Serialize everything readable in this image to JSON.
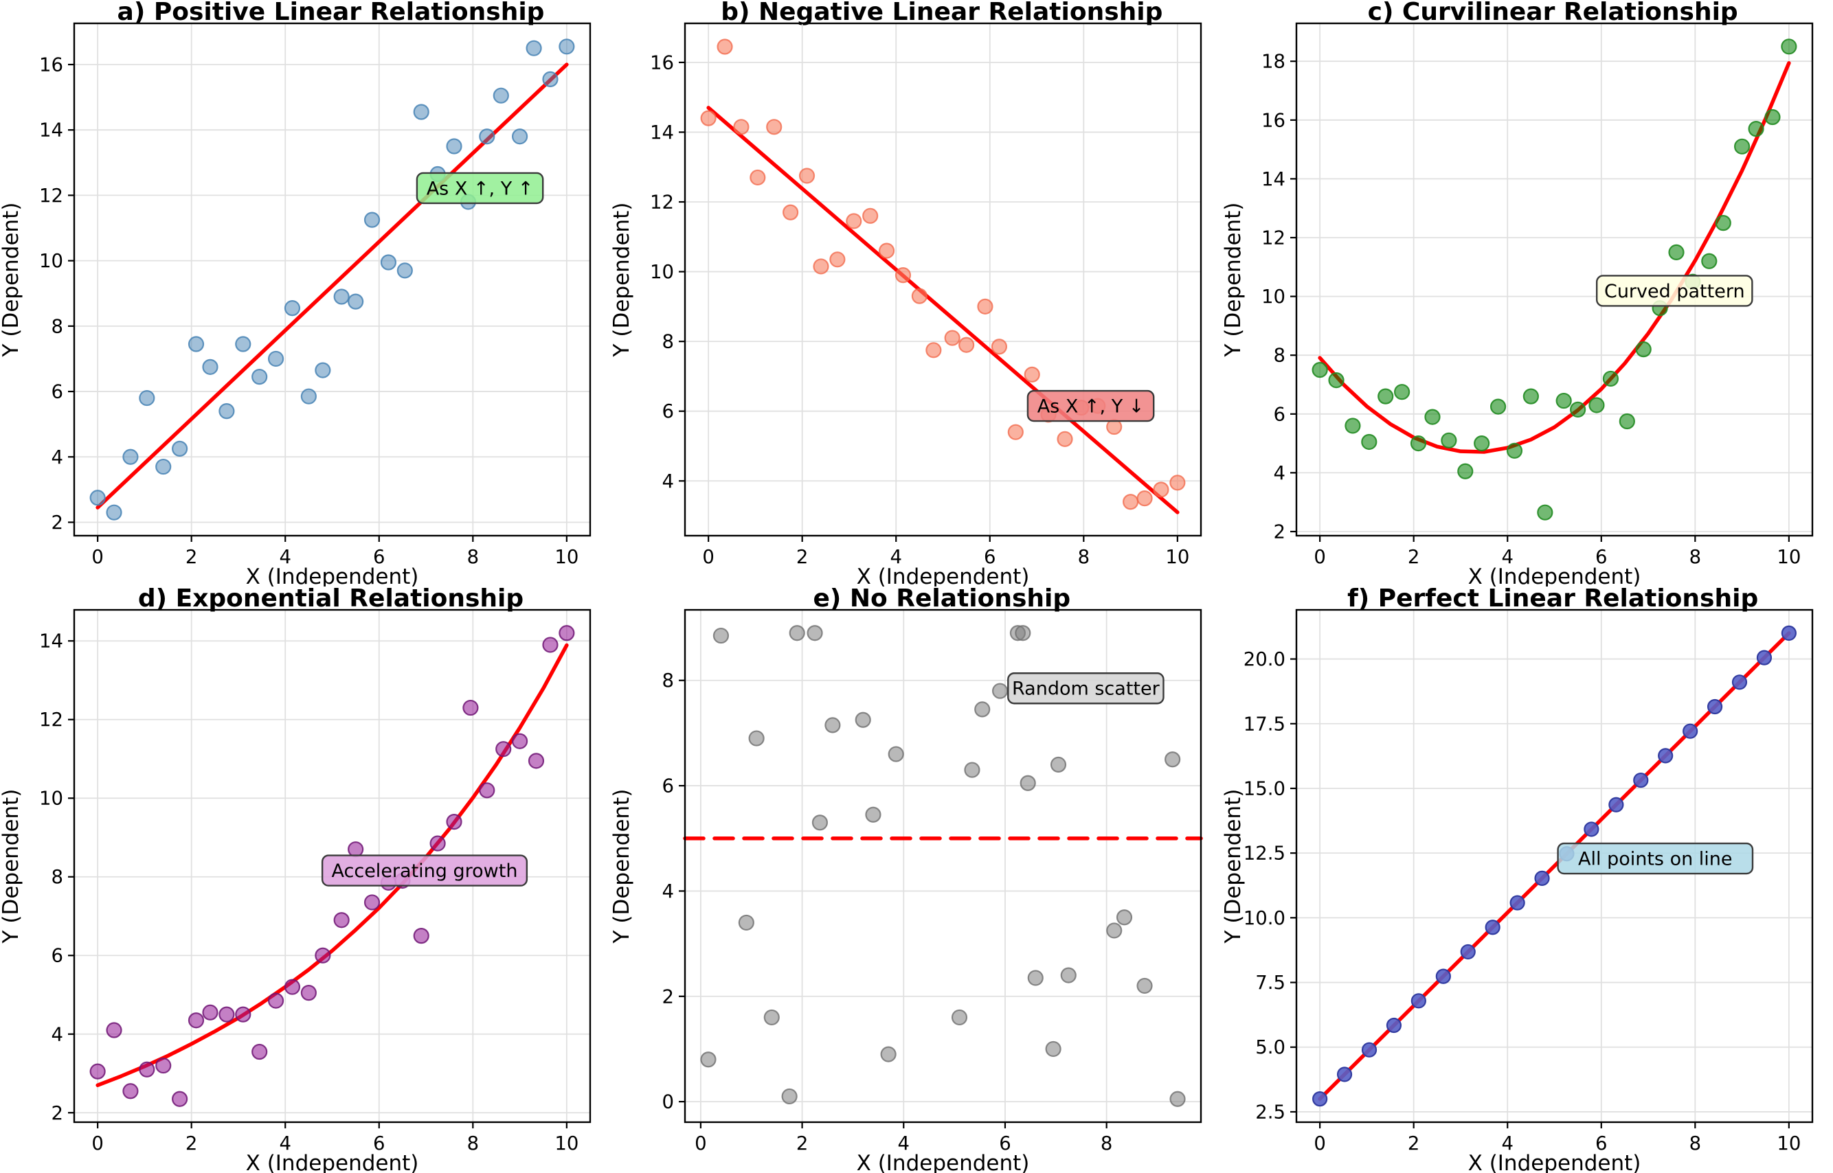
{
  "figure": {
    "background": "#ffffff",
    "trend_color": "#ff0000",
    "grid_color": "#e0e0e0",
    "spine_color": "#000000",
    "annotation_border": "#3a3a3a"
  },
  "chart_data": [
    {
      "id": "a",
      "type": "scatter",
      "title": "a) Positive Linear Relationship",
      "xlabel": "X (Independent)",
      "ylabel": "Y (Dependent)",
      "xlim": [
        -0.5,
        10.5
      ],
      "ylim": [
        1.59,
        17.26
      ],
      "xticks": [
        0,
        2,
        4,
        6,
        8,
        10
      ],
      "xtick_labels": [
        "0",
        "2",
        "4",
        "6",
        "8",
        "10"
      ],
      "yticks": [
        2,
        4,
        6,
        8,
        10,
        12,
        14,
        16
      ],
      "ytick_labels": [
        "2",
        "4",
        "6",
        "8",
        "10",
        "12",
        "14",
        "16"
      ],
      "grid": true,
      "point_style": {
        "fill": "rgba(70,130,180,0.5)",
        "stroke": "rgba(70,130,180,0.85)",
        "radius": 10.5
      },
      "points": [
        [
          0,
          2.75
        ],
        [
          0.35,
          2.3
        ],
        [
          0.7,
          4.0
        ],
        [
          1.05,
          5.8
        ],
        [
          1.4,
          3.7
        ],
        [
          1.75,
          4.25
        ],
        [
          2.1,
          7.45
        ],
        [
          2.4,
          6.75
        ],
        [
          2.75,
          5.4
        ],
        [
          3.1,
          7.45
        ],
        [
          3.45,
          6.45
        ],
        [
          3.8,
          7.0
        ],
        [
          4.15,
          8.55
        ],
        [
          4.5,
          5.85
        ],
        [
          4.8,
          6.65
        ],
        [
          5.2,
          8.9
        ],
        [
          5.5,
          8.75
        ],
        [
          5.85,
          11.25
        ],
        [
          6.2,
          9.95
        ],
        [
          6.55,
          9.7
        ],
        [
          6.9,
          14.55
        ],
        [
          7.25,
          12.65
        ],
        [
          7.6,
          13.5
        ],
        [
          7.9,
          11.8
        ],
        [
          8.3,
          13.8
        ],
        [
          8.6,
          15.05
        ],
        [
          9.0,
          13.8
        ],
        [
          9.3,
          16.5
        ],
        [
          9.65,
          15.55
        ],
        [
          10.0,
          16.55
        ]
      ],
      "trend": {
        "style": "solid",
        "points": [
          [
            0,
            2.45
          ],
          [
            10,
            16.0
          ]
        ]
      },
      "annotation": {
        "text": "As X ↑, Y ↑",
        "x": 8.15,
        "y": 12.22,
        "fill": "#90EE90"
      }
    },
    {
      "id": "b",
      "type": "scatter",
      "title": "b) Negative Linear Relationship",
      "xlabel": "X (Independent)",
      "ylabel": "Y (Dependent)",
      "xlim": [
        -0.5,
        10.5
      ],
      "ylim": [
        2.43,
        17.12
      ],
      "xticks": [
        0,
        2,
        4,
        6,
        8,
        10
      ],
      "xtick_labels": [
        "0",
        "2",
        "4",
        "6",
        "8",
        "10"
      ],
      "yticks": [
        4,
        6,
        8,
        10,
        12,
        14,
        16
      ],
      "ytick_labels": [
        "4",
        "6",
        "8",
        "10",
        "12",
        "14",
        "16"
      ],
      "grid": true,
      "point_style": {
        "fill": "rgba(246,126,96,0.6)",
        "stroke": "rgba(242,100,70,0.75)",
        "radius": 10.5
      },
      "points": [
        [
          0,
          14.4
        ],
        [
          0.35,
          16.45
        ],
        [
          0.7,
          14.15
        ],
        [
          1.05,
          12.7
        ],
        [
          1.4,
          14.15
        ],
        [
          1.75,
          11.7
        ],
        [
          2.1,
          12.75
        ],
        [
          2.4,
          10.15
        ],
        [
          2.75,
          10.35
        ],
        [
          3.1,
          11.45
        ],
        [
          3.45,
          11.6
        ],
        [
          3.8,
          10.6
        ],
        [
          4.15,
          9.9
        ],
        [
          4.5,
          9.3
        ],
        [
          4.8,
          7.75
        ],
        [
          5.2,
          8.1
        ],
        [
          5.5,
          7.9
        ],
        [
          5.9,
          9.0
        ],
        [
          6.2,
          7.85
        ],
        [
          6.55,
          5.4
        ],
        [
          6.9,
          7.05
        ],
        [
          7.25,
          5.9
        ],
        [
          7.6,
          5.2
        ],
        [
          7.95,
          6.1
        ],
        [
          8.3,
          6.15
        ],
        [
          8.65,
          5.55
        ],
        [
          9.0,
          3.4
        ],
        [
          9.3,
          3.5
        ],
        [
          9.65,
          3.75
        ],
        [
          10.0,
          3.95
        ]
      ],
      "trend": {
        "style": "solid",
        "points": [
          [
            0,
            14.7
          ],
          [
            10,
            3.1
          ]
        ]
      },
      "annotation": {
        "text": "As X ↑, Y ↓",
        "x": 8.15,
        "y": 6.15,
        "fill": "#F08080"
      }
    },
    {
      "id": "c",
      "type": "scatter",
      "title": "c) Curvilinear Relationship",
      "xlabel": "X (Independent)",
      "ylabel": "Y (Dependent)",
      "xlim": [
        -0.5,
        10.5
      ],
      "ylim": [
        1.86,
        19.29
      ],
      "xticks": [
        0,
        2,
        4,
        6,
        8,
        10
      ],
      "xtick_labels": [
        "0",
        "2",
        "4",
        "6",
        "8",
        "10"
      ],
      "yticks": [
        2,
        4,
        6,
        8,
        10,
        12,
        14,
        16,
        18
      ],
      "ytick_labels": [
        "2",
        "4",
        "6",
        "8",
        "10",
        "12",
        "14",
        "16",
        "18"
      ],
      "grid": true,
      "point_style": {
        "fill": "rgba(0,128,0,0.55)",
        "stroke": "rgba(34,139,34,0.9)",
        "radius": 10.5
      },
      "points": [
        [
          0,
          7.5
        ],
        [
          0.35,
          7.15
        ],
        [
          0.7,
          5.6
        ],
        [
          1.05,
          5.05
        ],
        [
          1.4,
          6.6
        ],
        [
          1.75,
          6.75
        ],
        [
          2.1,
          5.0
        ],
        [
          2.4,
          5.9
        ],
        [
          2.75,
          5.1
        ],
        [
          3.1,
          4.05
        ],
        [
          3.45,
          5.0
        ],
        [
          3.8,
          6.25
        ],
        [
          4.15,
          4.75
        ],
        [
          4.5,
          6.6
        ],
        [
          4.8,
          2.65
        ],
        [
          5.2,
          6.45
        ],
        [
          5.5,
          6.15
        ],
        [
          5.9,
          6.3
        ],
        [
          6.2,
          7.2
        ],
        [
          6.55,
          5.75
        ],
        [
          6.9,
          8.2
        ],
        [
          7.25,
          9.6
        ],
        [
          7.6,
          11.5
        ],
        [
          7.95,
          10.5
        ],
        [
          8.3,
          11.2
        ],
        [
          8.6,
          12.5
        ],
        [
          9.0,
          15.1
        ],
        [
          9.3,
          15.7
        ],
        [
          9.65,
          16.1
        ],
        [
          10.0,
          18.5
        ]
      ],
      "trend": {
        "style": "solid",
        "points": [
          [
            0,
            7.91
          ],
          [
            0.5,
            7.01
          ],
          [
            1,
            6.26
          ],
          [
            1.5,
            5.66
          ],
          [
            2,
            5.2
          ],
          [
            2.5,
            4.89
          ],
          [
            3,
            4.73
          ],
          [
            3.5,
            4.71
          ],
          [
            4,
            4.85
          ],
          [
            4.5,
            5.13
          ],
          [
            5,
            5.55
          ],
          [
            5.5,
            6.13
          ],
          [
            6,
            6.85
          ],
          [
            6.5,
            7.72
          ],
          [
            7,
            8.74
          ],
          [
            7.5,
            9.9
          ],
          [
            8,
            11.22
          ],
          [
            8.5,
            12.68
          ],
          [
            9,
            14.28
          ],
          [
            9.5,
            16.04
          ],
          [
            10,
            17.94
          ]
        ]
      },
      "annotation": {
        "text": "Curved pattern",
        "x": 7.56,
        "y": 10.19,
        "fill": "#FFFFE0"
      }
    },
    {
      "id": "d",
      "type": "scatter",
      "title": "d) Exponential Relationship",
      "xlabel": "X (Independent)",
      "ylabel": "Y (Dependent)",
      "xlim": [
        -0.5,
        10.5
      ],
      "ylim": [
        1.76,
        14.79
      ],
      "xticks": [
        0,
        2,
        4,
        6,
        8,
        10
      ],
      "xtick_labels": [
        "0",
        "2",
        "4",
        "6",
        "8",
        "10"
      ],
      "yticks": [
        2,
        4,
        6,
        8,
        10,
        12,
        14
      ],
      "ytick_labels": [
        "2",
        "4",
        "6",
        "8",
        "10",
        "12",
        "14"
      ],
      "grid": true,
      "point_style": {
        "fill": "rgba(148,24,150,0.55)",
        "stroke": "rgba(110,20,115,0.85)",
        "radius": 10.5
      },
      "points": [
        [
          0,
          3.05
        ],
        [
          0.35,
          4.1
        ],
        [
          0.7,
          2.55
        ],
        [
          1.05,
          3.1
        ],
        [
          1.4,
          3.2
        ],
        [
          1.75,
          2.35
        ],
        [
          2.1,
          4.35
        ],
        [
          2.4,
          4.55
        ],
        [
          2.75,
          4.5
        ],
        [
          3.1,
          4.5
        ],
        [
          3.45,
          3.55
        ],
        [
          3.8,
          4.85
        ],
        [
          4.15,
          5.2
        ],
        [
          4.5,
          5.05
        ],
        [
          4.8,
          6.0
        ],
        [
          5.2,
          6.9
        ],
        [
          5.5,
          8.7
        ],
        [
          5.85,
          7.35
        ],
        [
          6.2,
          7.85
        ],
        [
          6.5,
          7.9
        ],
        [
          6.9,
          6.5
        ],
        [
          7.25,
          8.85
        ],
        [
          7.6,
          9.4
        ],
        [
          7.95,
          12.3
        ],
        [
          8.3,
          10.2
        ],
        [
          8.65,
          11.25
        ],
        [
          9.0,
          11.45
        ],
        [
          9.35,
          10.95
        ],
        [
          9.65,
          13.9
        ],
        [
          10.0,
          14.2
        ]
      ],
      "trend": {
        "style": "solid",
        "points": [
          [
            0,
            2.7
          ],
          [
            0.5,
            2.93
          ],
          [
            1,
            3.18
          ],
          [
            1.5,
            3.45
          ],
          [
            2,
            3.75
          ],
          [
            2.5,
            4.07
          ],
          [
            3,
            4.41
          ],
          [
            3.5,
            4.79
          ],
          [
            4,
            5.2
          ],
          [
            4.5,
            5.64
          ],
          [
            5,
            6.12
          ],
          [
            5.5,
            6.65
          ],
          [
            6,
            7.21
          ],
          [
            6.5,
            7.83
          ],
          [
            7,
            8.5
          ],
          [
            7.5,
            9.22
          ],
          [
            8,
            10.01
          ],
          [
            8.5,
            10.86
          ],
          [
            9,
            11.79
          ],
          [
            9.5,
            12.79
          ],
          [
            10,
            13.89
          ]
        ]
      },
      "annotation": {
        "text": "Accelerating growth",
        "x": 6.97,
        "y": 8.16,
        "fill": "#DDA0DD"
      }
    },
    {
      "id": "e",
      "type": "scatter",
      "title": "e) No Relationship",
      "xlabel": "X (Independent)",
      "ylabel": "Y (Dependent)",
      "xlim": [
        -0.31,
        9.86
      ],
      "ylim": [
        -0.39,
        9.34
      ],
      "xticks": [
        0,
        2,
        4,
        6,
        8
      ],
      "xtick_labels": [
        "0",
        "2",
        "4",
        "6",
        "8"
      ],
      "yticks": [
        0,
        2,
        4,
        6,
        8
      ],
      "ytick_labels": [
        "0",
        "2",
        "4",
        "6",
        "8"
      ],
      "grid": true,
      "point_style": {
        "fill": "rgba(128,128,128,0.55)",
        "stroke": "rgba(110,110,110,0.8)",
        "radius": 10.5
      },
      "points": [
        [
          0.15,
          0.8
        ],
        [
          0.4,
          8.85
        ],
        [
          0.9,
          3.4
        ],
        [
          1.1,
          6.9
        ],
        [
          1.4,
          1.6
        ],
        [
          1.75,
          0.1
        ],
        [
          1.9,
          8.9
        ],
        [
          2.25,
          8.9
        ],
        [
          2.35,
          5.3
        ],
        [
          2.6,
          7.15
        ],
        [
          3.2,
          7.25
        ],
        [
          3.4,
          5.45
        ],
        [
          3.7,
          0.9
        ],
        [
          3.85,
          6.6
        ],
        [
          5.1,
          1.6
        ],
        [
          5.35,
          6.3
        ],
        [
          5.55,
          7.45
        ],
        [
          5.9,
          7.8
        ],
        [
          6.25,
          8.9
        ],
        [
          6.35,
          8.9
        ],
        [
          6.45,
          6.05
        ],
        [
          6.6,
          2.35
        ],
        [
          6.95,
          1.0
        ],
        [
          7.05,
          6.4
        ],
        [
          7.25,
          2.4
        ],
        [
          8.15,
          3.25
        ],
        [
          8.35,
          3.5
        ],
        [
          8.75,
          2.2
        ],
        [
          9.3,
          6.5
        ],
        [
          9.4,
          0.05
        ]
      ],
      "trend": {
        "style": "dashed",
        "points": [
          [
            -0.31,
            5.0
          ],
          [
            9.86,
            5.0
          ]
        ]
      },
      "annotation": {
        "text": "Random scatter",
        "x": 7.59,
        "y": 7.85,
        "fill": "#D3D3D3"
      }
    },
    {
      "id": "f",
      "type": "scatter",
      "title": "f) Perfect Linear Relationship",
      "xlabel": "X (Independent)",
      "ylabel": "Y (Dependent)",
      "xlim": [
        -0.5,
        10.5
      ],
      "ylim": [
        2.1,
        21.9
      ],
      "xticks": [
        0,
        2,
        4,
        6,
        8,
        10
      ],
      "xtick_labels": [
        "0",
        "2",
        "4",
        "6",
        "8",
        "10"
      ],
      "yticks": [
        2.5,
        5.0,
        7.5,
        10.0,
        12.5,
        15.0,
        17.5,
        20.0
      ],
      "ytick_labels": [
        "2.5",
        "5.0",
        "7.5",
        "10.0",
        "12.5",
        "15.0",
        "17.5",
        "20.0"
      ],
      "grid": true,
      "point_style": {
        "fill": "rgba(86,96,200,0.9)",
        "stroke": "rgba(50,60,160,1)",
        "radius": 10
      },
      "points": [
        [
          0,
          3.0
        ],
        [
          0.526,
          3.947
        ],
        [
          1.053,
          4.895
        ],
        [
          1.579,
          5.842
        ],
        [
          2.105,
          6.789
        ],
        [
          2.632,
          7.737
        ],
        [
          3.158,
          8.684
        ],
        [
          3.684,
          9.632
        ],
        [
          4.211,
          10.579
        ],
        [
          4.737,
          11.526
        ],
        [
          5.263,
          12.474
        ],
        [
          5.789,
          13.421
        ],
        [
          6.316,
          14.368
        ],
        [
          6.842,
          15.316
        ],
        [
          7.368,
          16.263
        ],
        [
          7.895,
          17.211
        ],
        [
          8.421,
          18.158
        ],
        [
          8.947,
          19.105
        ],
        [
          9.474,
          20.053
        ],
        [
          10.0,
          21.0
        ]
      ],
      "trend": {
        "style": "solid",
        "points": [
          [
            0,
            3.0
          ],
          [
            10,
            21.0
          ]
        ]
      },
      "annotation": {
        "text": "All points on line",
        "x": 7.15,
        "y": 12.29,
        "fill": "#ADD8E6"
      }
    }
  ]
}
